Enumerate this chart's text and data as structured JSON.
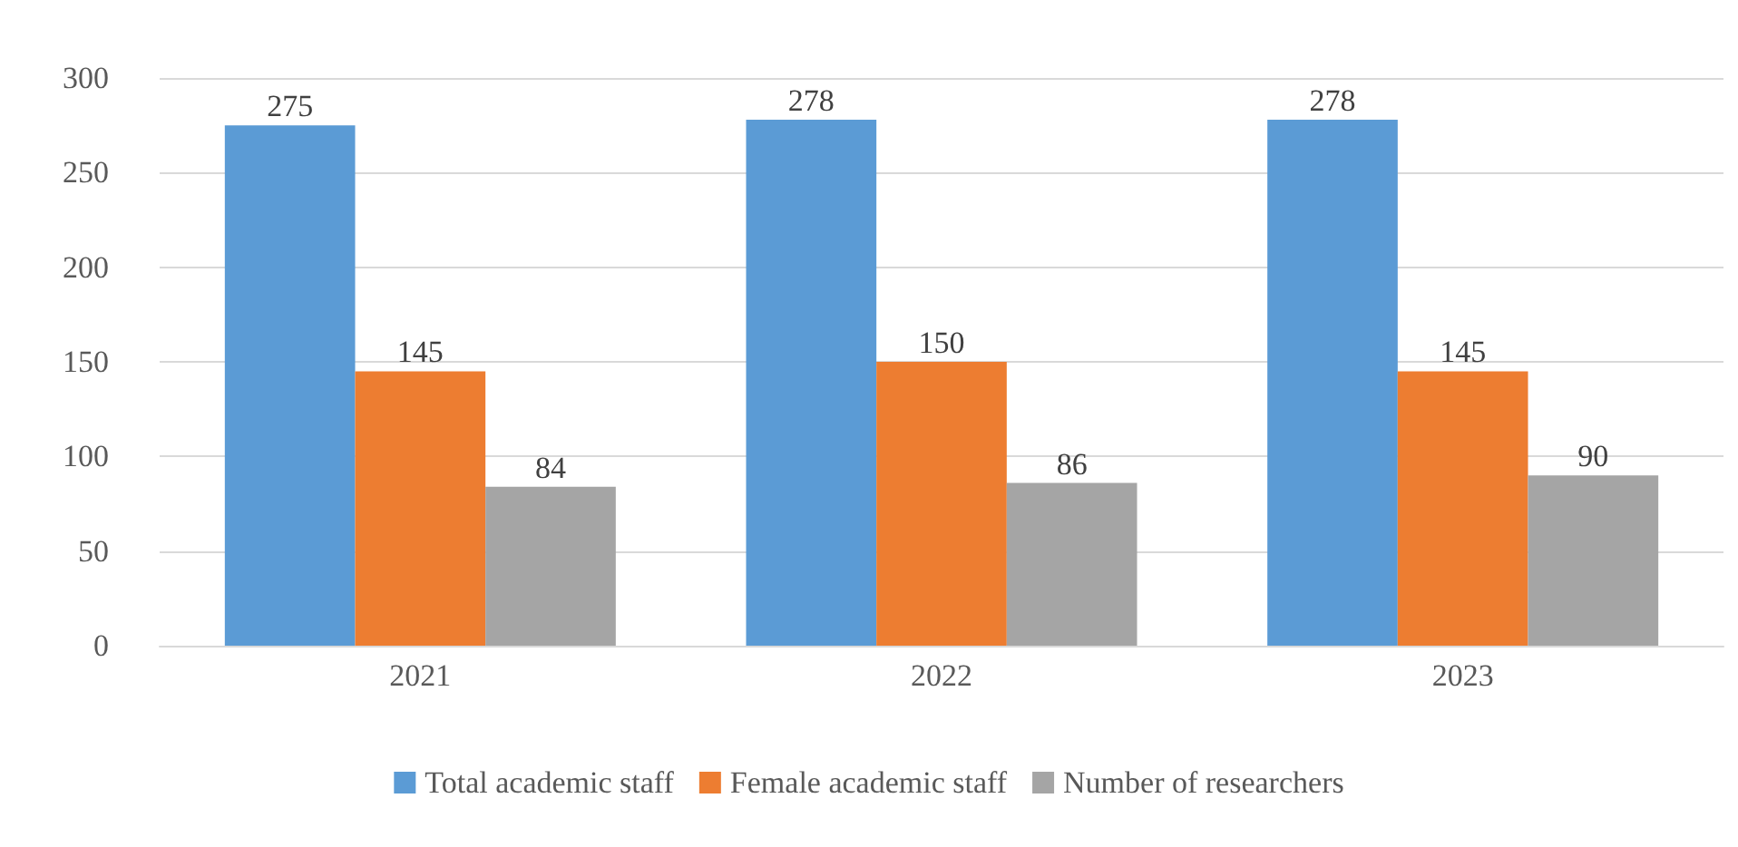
{
  "chart_data": {
    "type": "bar",
    "categories": [
      "2021",
      "2022",
      "2023"
    ],
    "series": [
      {
        "name": "Total academic staff",
        "color": "#5b9bd5",
        "values": [
          275,
          278,
          278
        ]
      },
      {
        "name": "Female academic staff",
        "color": "#ed7d31",
        "values": [
          145,
          150,
          145
        ]
      },
      {
        "name": "Number of researchers",
        "color": "#a5a5a5",
        "values": [
          84,
          86,
          90
        ]
      }
    ],
    "ylim": [
      0,
      300
    ],
    "yticks": [
      0,
      50,
      100,
      150,
      200,
      250,
      300
    ],
    "grid": "y",
    "legend": "bottom",
    "data_labels": true
  }
}
